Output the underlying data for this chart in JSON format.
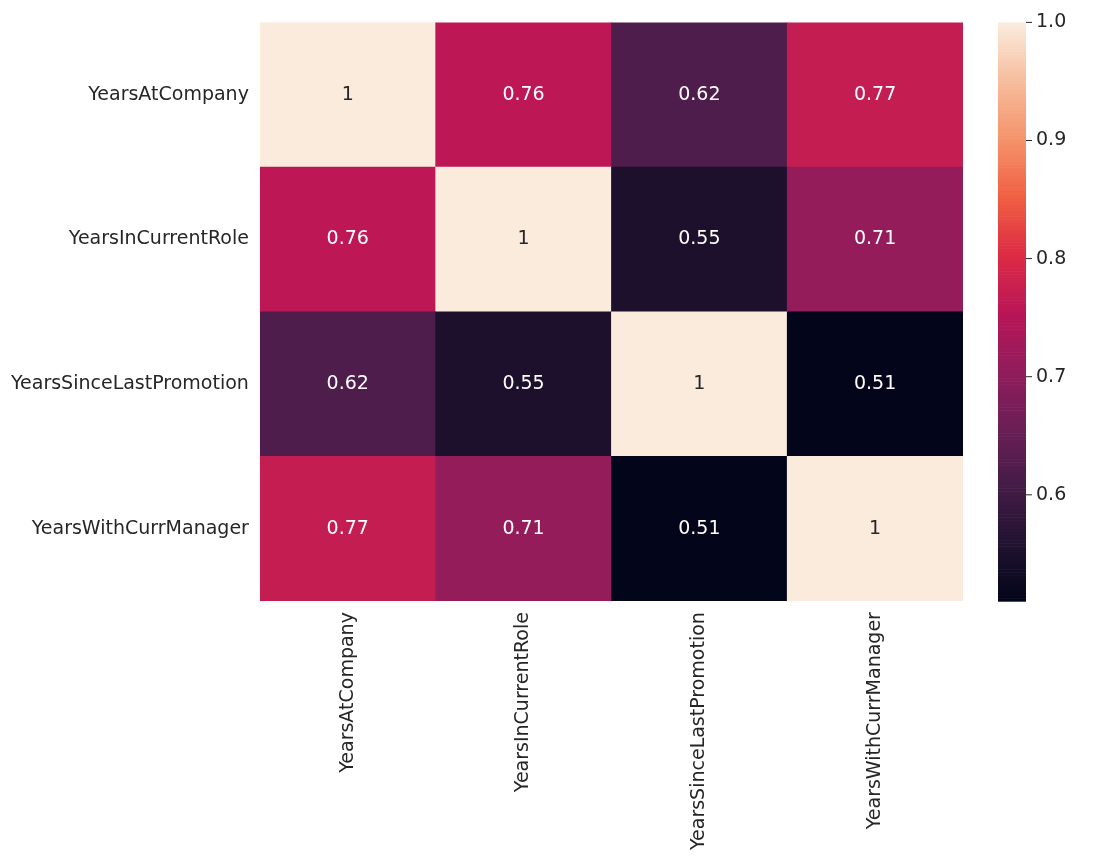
{
  "chart_data": {
    "type": "heatmap",
    "categories": [
      "YearsAtCompany",
      "YearsInCurrentRole",
      "YearsSinceLastPromotion",
      "YearsWithCurrManager"
    ],
    "y_categories": [
      "YearsAtCompany",
      "YearsInCurrentRole",
      "YearsSinceLastPromotion",
      "YearsWithCurrManager"
    ],
    "cells": [
      [
        1,
        0.76,
        0.62,
        0.77
      ],
      [
        0.76,
        1,
        0.55,
        0.71
      ],
      [
        0.62,
        0.55,
        1,
        0.51
      ],
      [
        0.77,
        0.71,
        0.51,
        1
      ]
    ],
    "data_labels": true,
    "clim": [
      0.51,
      1
    ],
    "cticks": [
      0.6,
      0.7,
      0.8,
      {
        "value": 1,
        "label": "1.0"
      },
      0.9
    ]
  }
}
